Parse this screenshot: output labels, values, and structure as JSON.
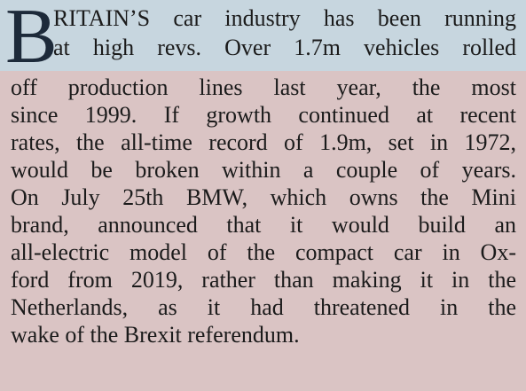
{
  "article": {
    "drop_cap": "B",
    "lines": [
      "RITAIN’S car industry has been running",
      "at high revs. Over 1.7m vehicles rolled",
      "off production lines last year, the most",
      "since 1999. If growth continued at recent",
      "rates, the all-time record of 1.9m, set in 1972,",
      "would be broken within a couple of years.",
      "On July 25th BMW, which owns the Mini",
      "brand, announced that it would build an",
      "all-electric model of the compact car in Ox-",
      "ford from 2019, rather than making it in the",
      "Netherlands, as it had threatened in the",
      "wake of the Brexit referendum."
    ]
  }
}
